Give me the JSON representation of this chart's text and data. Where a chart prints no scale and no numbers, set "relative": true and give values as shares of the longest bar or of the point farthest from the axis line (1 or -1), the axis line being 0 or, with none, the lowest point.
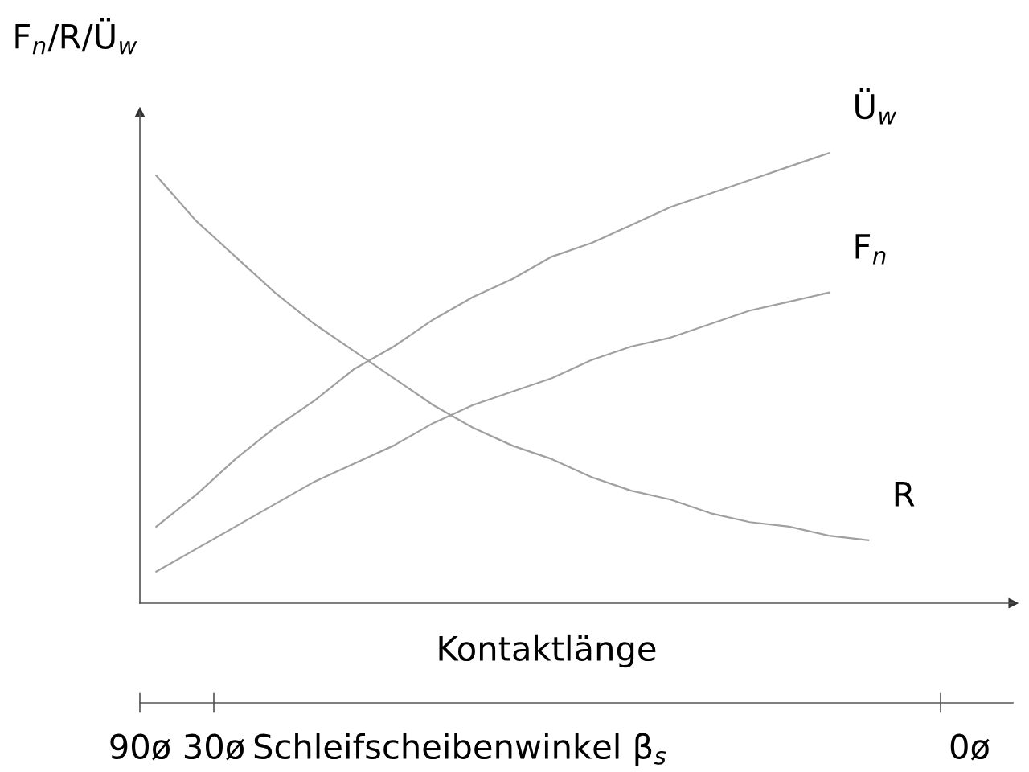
{
  "chart_data": {
    "type": "line",
    "relative": true,
    "ylabel": "F$_{n}$/R/Ü$_{w}$",
    "xlabel": "Kontaktlänge",
    "categories": [
      null,
      null,
      null,
      null,
      null,
      null,
      null,
      null,
      null,
      null,
      null,
      null,
      null,
      null,
      null,
      null,
      null,
      null,
      null
    ],
    "series": [
      {
        "name": "Ü$_{w}$",
        "color": "#a0a0a0",
        "values": [
          0.17,
          0.24,
          0.32,
          0.39,
          0.45,
          0.52,
          0.57,
          0.63,
          0.68,
          0.72,
          0.77,
          0.8,
          0.84,
          0.88,
          0.91,
          0.94,
          0.97,
          1.0,
          null
        ]
      },
      {
        "name": "F$_{n}$",
        "color": "#a0a0a0",
        "values": [
          0.07,
          0.12,
          0.17,
          0.22,
          0.27,
          0.31,
          0.35,
          0.4,
          0.44,
          0.47,
          0.5,
          0.54,
          0.57,
          0.59,
          0.62,
          0.65,
          0.67,
          0.69,
          null
        ]
      },
      {
        "name": "R",
        "color": "#a0a0a0",
        "values": [
          0.95,
          0.85,
          0.77,
          0.69,
          0.62,
          0.56,
          0.5,
          0.44,
          0.39,
          0.35,
          0.32,
          0.28,
          0.25,
          0.23,
          0.2,
          0.18,
          0.17,
          0.15,
          0.14
        ]
      }
    ],
    "annotations": [
      "90ø",
      "30ø",
      "Schleifscheibenwinkel β$_{s}$",
      "0ø"
    ],
    "legend": false,
    "marker": "none",
    "line_style": "solid"
  }
}
